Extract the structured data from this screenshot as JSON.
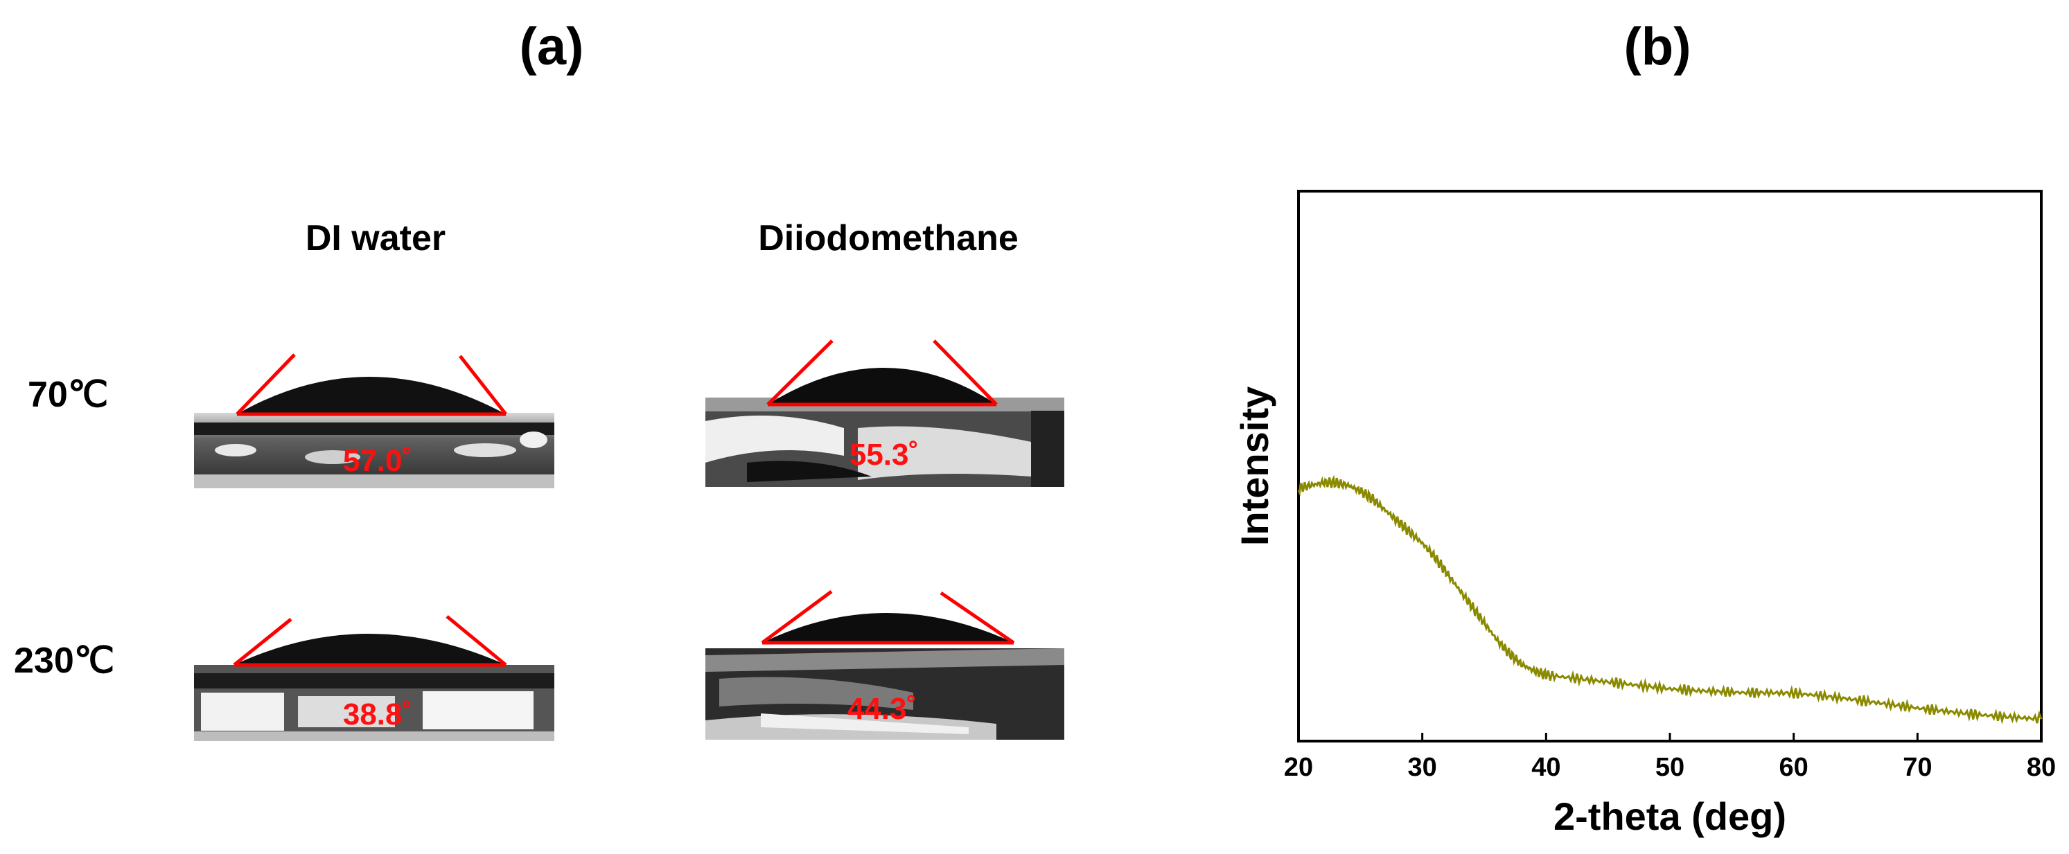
{
  "panel_a": {
    "label": "(a)",
    "columns": [
      "DI water",
      "Diiodomethane"
    ],
    "rows": [
      "70℃",
      "230℃"
    ],
    "angles": [
      [
        "57.0˚",
        "55.3˚"
      ],
      [
        "38.8˚",
        "44.3˚"
      ]
    ]
  },
  "panel_b": {
    "label": "(b)"
  },
  "colors": {
    "angle_line": "#ff0000",
    "xrd_line": "#8a8a00"
  },
  "chart_data": {
    "type": "line",
    "title": "",
    "xlabel": "2-theta (deg)",
    "ylabel": "Intensity",
    "xlim": [
      20,
      80
    ],
    "xticks": [
      20,
      30,
      40,
      50,
      60,
      70,
      80
    ],
    "ylim": [
      0,
      1
    ],
    "y_ticks_shown": false,
    "grid": false,
    "series": [
      {
        "x": [
          20,
          21,
          22,
          23,
          24,
          25,
          26,
          27,
          28,
          29,
          30,
          31,
          32,
          33,
          34,
          35,
          36,
          37,
          38,
          39,
          40,
          42,
          44,
          46,
          48,
          50,
          52,
          54,
          56,
          58,
          60,
          62,
          64,
          66,
          68,
          70,
          72,
          74,
          76,
          78,
          80
        ],
        "y": [
          0.46,
          0.465,
          0.47,
          0.47,
          0.465,
          0.455,
          0.44,
          0.42,
          0.4,
          0.38,
          0.36,
          0.335,
          0.305,
          0.275,
          0.245,
          0.215,
          0.185,
          0.16,
          0.14,
          0.128,
          0.12,
          0.115,
          0.11,
          0.105,
          0.1,
          0.095,
          0.092,
          0.09,
          0.088,
          0.088,
          0.087,
          0.083,
          0.078,
          0.072,
          0.066,
          0.06,
          0.055,
          0.05,
          0.046,
          0.043,
          0.04
        ]
      }
    ]
  }
}
